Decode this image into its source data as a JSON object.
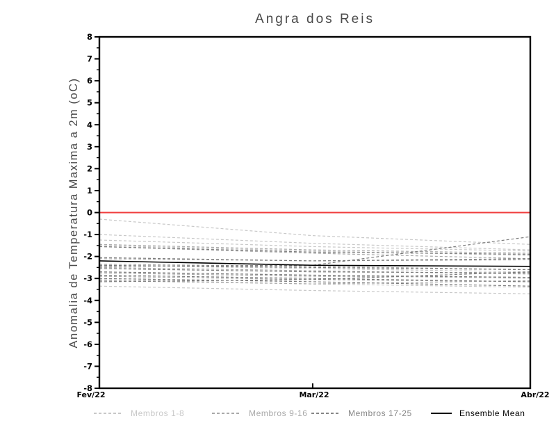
{
  "title": "Angra dos Reis",
  "ylabel": "Anomalia de Temperatura Maxima a 2m (oC)",
  "legend": [
    {
      "label": "Membros 1-8",
      "color": "#c8c8c8",
      "style": "dashed"
    },
    {
      "label": "Membros 9-16",
      "color": "#a9a9a9",
      "style": "dashed"
    },
    {
      "label": "Membros 17-25",
      "color": "#868686",
      "style": "dashed"
    },
    {
      "label": "Ensemble Mean",
      "color": "#000000",
      "style": "solid"
    }
  ],
  "chart_data": {
    "type": "line",
    "title": "Angra dos Reis",
    "ylabel": "Anomalia de Temperatura Maxima a 2m (oC)",
    "x_labels": [
      "Fev/22",
      "Mar/22",
      "Abr/22"
    ],
    "x_positions": [
      0,
      0.495,
      1
    ],
    "ylim": [
      -8,
      8
    ],
    "yticks": [
      "8",
      "7",
      "6",
      "5",
      "4",
      "3",
      "2",
      "1",
      "0",
      "-1",
      "-2",
      "-3",
      "-4",
      "-5",
      "-6",
      "-7",
      "-8"
    ],
    "ytick_values": [
      8,
      7,
      6,
      5,
      4,
      3,
      2,
      1,
      0,
      -1,
      -2,
      -3,
      -4,
      -5,
      -6,
      -7,
      -8
    ],
    "y_minor_step": 0.5,
    "grid": false,
    "legend_position": "bottom",
    "zero_line": {
      "value": 0,
      "color": "#f03c3c"
    },
    "groups": [
      {
        "name": "Membros 1-8",
        "color": "#c8c8c8",
        "members": [
          [
            -0.3,
            -1.05,
            -1.45
          ],
          [
            -1.0,
            -1.4,
            -1.7
          ],
          [
            -1.25,
            -1.55,
            -1.75
          ],
          [
            -1.5,
            -1.75,
            -1.95
          ],
          [
            -2.4,
            -2.55,
            -2.7
          ],
          [
            -2.7,
            -2.85,
            -3.0
          ],
          [
            -3.05,
            -3.25,
            -3.4
          ],
          [
            -3.35,
            -3.55,
            -3.7
          ]
        ]
      },
      {
        "name": "Membros 9-16",
        "color": "#a9a9a9",
        "members": [
          [
            -1.45,
            -1.7,
            -1.85
          ],
          [
            -1.55,
            -1.85,
            -2.1
          ],
          [
            -2.1,
            -2.2,
            -2.15
          ],
          [
            -2.35,
            -2.45,
            -2.6
          ],
          [
            -2.5,
            -2.65,
            -2.8
          ],
          [
            -2.75,
            -2.9,
            -2.95
          ],
          [
            -2.9,
            -3.05,
            -3.15
          ],
          [
            -3.1,
            -3.25,
            -3.1
          ]
        ]
      },
      {
        "name": "Membros 17-25",
        "color": "#7d7d7d",
        "members": [
          [
            -1.55,
            -1.8,
            -1.9
          ],
          [
            -2.05,
            -2.2,
            -2.1
          ],
          [
            -2.45,
            -2.4,
            -1.1
          ],
          [
            -2.4,
            -2.5,
            -2.6
          ],
          [
            -2.55,
            -2.7,
            -2.75
          ],
          [
            -2.7,
            -2.85,
            -2.95
          ],
          [
            -2.85,
            -3.0,
            -3.15
          ],
          [
            -3.0,
            -3.15,
            -3.35
          ],
          [
            -3.15,
            -3.05,
            -2.7
          ]
        ]
      }
    ],
    "mean": {
      "name": "Ensemble Mean",
      "color": "#000000",
      "values": [
        -2.2,
        -2.4,
        -2.45
      ]
    }
  }
}
